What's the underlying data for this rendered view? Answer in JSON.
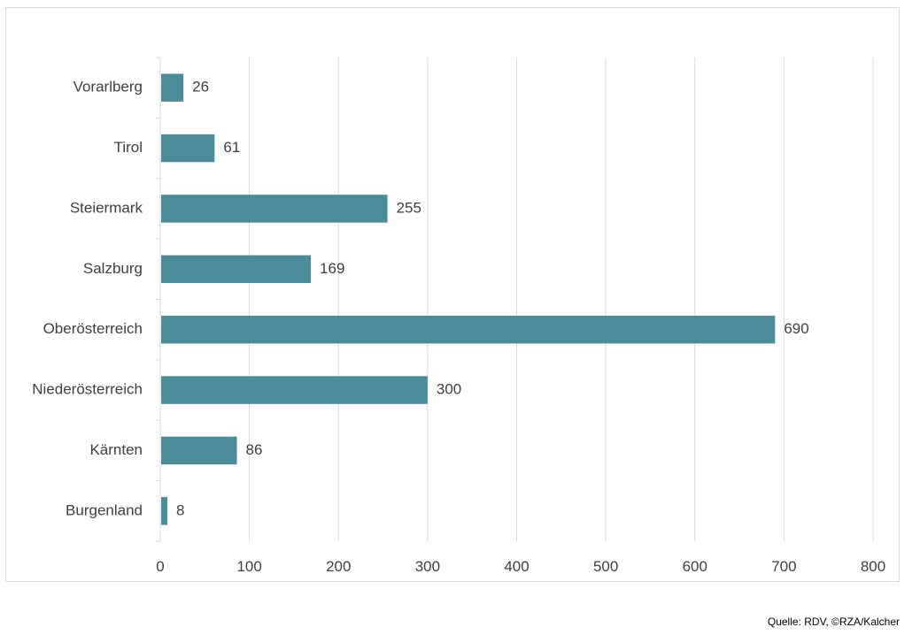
{
  "chart_data": {
    "type": "bar",
    "orientation": "horizontal",
    "title": "",
    "xlabel": "",
    "ylabel": "",
    "categories": [
      "Vorarlberg",
      "Tirol",
      "Steiermark",
      "Salzburg",
      "Oberösterreich",
      "Niederösterreich",
      "Kärnten",
      "Burgenland"
    ],
    "values": [
      26,
      61,
      255,
      169,
      690,
      300,
      86,
      8
    ],
    "xlim": [
      0,
      800
    ],
    "xticks": [
      0,
      100,
      200,
      300,
      400,
      500,
      600,
      700,
      800
    ],
    "grid": "vertical",
    "legend": "none",
    "bar_color": "#4a8c99",
    "grid_color": "#d9d9d9",
    "data_labels": true
  },
  "source": "Quelle: RDV, ©RZA/Kalcher"
}
